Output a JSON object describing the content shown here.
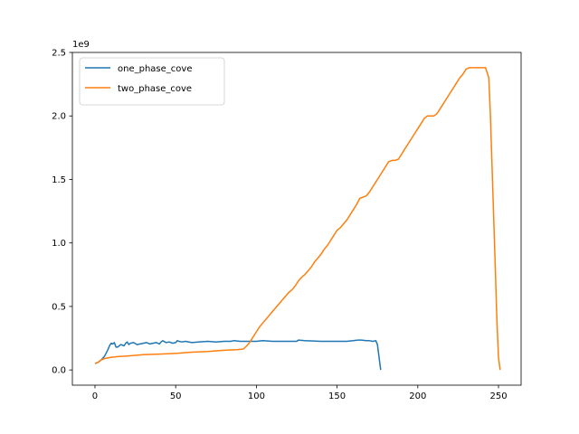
{
  "chart_data": {
    "type": "line",
    "title": "",
    "xlabel": "",
    "ylabel": "",
    "y_exponent_label": "1e9",
    "xlim": [
      -14,
      264
    ],
    "ylim": [
      -0.12,
      2.5
    ],
    "x_ticks": [
      0,
      50,
      100,
      150,
      200,
      250
    ],
    "x_tick_labels": [
      "0",
      "50",
      "100",
      "150",
      "200",
      "250"
    ],
    "y_ticks": [
      0,
      0.5,
      1.0,
      1.5,
      2.0,
      2.5
    ],
    "y_tick_labels": [
      "0.0",
      "0.5",
      "1.0",
      "1.5",
      "2.0",
      "2.5"
    ],
    "grid": false,
    "legend_position": "upper-left",
    "series": [
      {
        "name": "one_phase_cove",
        "color": "#1f77b4",
        "x": [
          0,
          2,
          4,
          6,
          8,
          9,
          10,
          11,
          12,
          13,
          14,
          16,
          18,
          19,
          20,
          21,
          22,
          24,
          26,
          28,
          30,
          32,
          34,
          36,
          38,
          40,
          41,
          42,
          44,
          46,
          48,
          50,
          51,
          52,
          54,
          56,
          60,
          64,
          70,
          75,
          80,
          84,
          86,
          90,
          95,
          100,
          104,
          110,
          115,
          120,
          125,
          126,
          130,
          140,
          150,
          156,
          160,
          163,
          165,
          168,
          170,
          172,
          174,
          175,
          176,
          177
        ],
        "y": [
          0.05,
          0.06,
          0.08,
          0.11,
          0.16,
          0.19,
          0.21,
          0.205,
          0.215,
          0.18,
          0.18,
          0.2,
          0.19,
          0.21,
          0.22,
          0.2,
          0.21,
          0.215,
          0.2,
          0.205,
          0.21,
          0.215,
          0.205,
          0.21,
          0.215,
          0.205,
          0.22,
          0.23,
          0.215,
          0.22,
          0.21,
          0.215,
          0.23,
          0.225,
          0.22,
          0.225,
          0.215,
          0.22,
          0.225,
          0.22,
          0.225,
          0.225,
          0.23,
          0.225,
          0.225,
          0.225,
          0.23,
          0.225,
          0.225,
          0.225,
          0.225,
          0.235,
          0.23,
          0.225,
          0.225,
          0.225,
          0.23,
          0.235,
          0.235,
          0.23,
          0.23,
          0.225,
          0.23,
          0.2,
          0.1,
          0.0
        ]
      },
      {
        "name": "two_phase_cove",
        "color": "#ff7f0e",
        "x": [
          0,
          2,
          4,
          6,
          10,
          14,
          20,
          30,
          40,
          50,
          60,
          70,
          80,
          88,
          92,
          94,
          96,
          98,
          100,
          102,
          104,
          106,
          108,
          110,
          112,
          114,
          116,
          118,
          120,
          122,
          124,
          126,
          128,
          130,
          132,
          134,
          136,
          138,
          140,
          142,
          144,
          146,
          148,
          150,
          152,
          154,
          156,
          158,
          160,
          162,
          164,
          166,
          168,
          170,
          172,
          174,
          176,
          178,
          180,
          182,
          184,
          186,
          188,
          190,
          192,
          194,
          196,
          198,
          200,
          202,
          204,
          206,
          208,
          210,
          212,
          214,
          216,
          218,
          220,
          222,
          224,
          226,
          228,
          230,
          232,
          234,
          236,
          238,
          240,
          242,
          244,
          245,
          246,
          247,
          248,
          249,
          250,
          251
        ],
        "y": [
          0.05,
          0.06,
          0.08,
          0.09,
          0.1,
          0.105,
          0.11,
          0.12,
          0.125,
          0.13,
          0.14,
          0.145,
          0.155,
          0.16,
          0.165,
          0.19,
          0.22,
          0.26,
          0.3,
          0.34,
          0.37,
          0.4,
          0.43,
          0.46,
          0.49,
          0.52,
          0.55,
          0.58,
          0.61,
          0.63,
          0.66,
          0.7,
          0.73,
          0.75,
          0.78,
          0.81,
          0.85,
          0.88,
          0.91,
          0.95,
          0.98,
          1.02,
          1.06,
          1.1,
          1.12,
          1.15,
          1.18,
          1.22,
          1.26,
          1.3,
          1.35,
          1.36,
          1.37,
          1.4,
          1.44,
          1.48,
          1.52,
          1.56,
          1.6,
          1.64,
          1.65,
          1.65,
          1.66,
          1.7,
          1.74,
          1.78,
          1.82,
          1.86,
          1.9,
          1.94,
          1.98,
          2.0,
          2.0,
          2.0,
          2.02,
          2.06,
          2.1,
          2.14,
          2.18,
          2.22,
          2.26,
          2.3,
          2.33,
          2.37,
          2.38,
          2.38,
          2.38,
          2.38,
          2.38,
          2.38,
          2.3,
          2.0,
          1.6,
          1.2,
          0.8,
          0.4,
          0.1,
          0.0
        ]
      }
    ]
  }
}
